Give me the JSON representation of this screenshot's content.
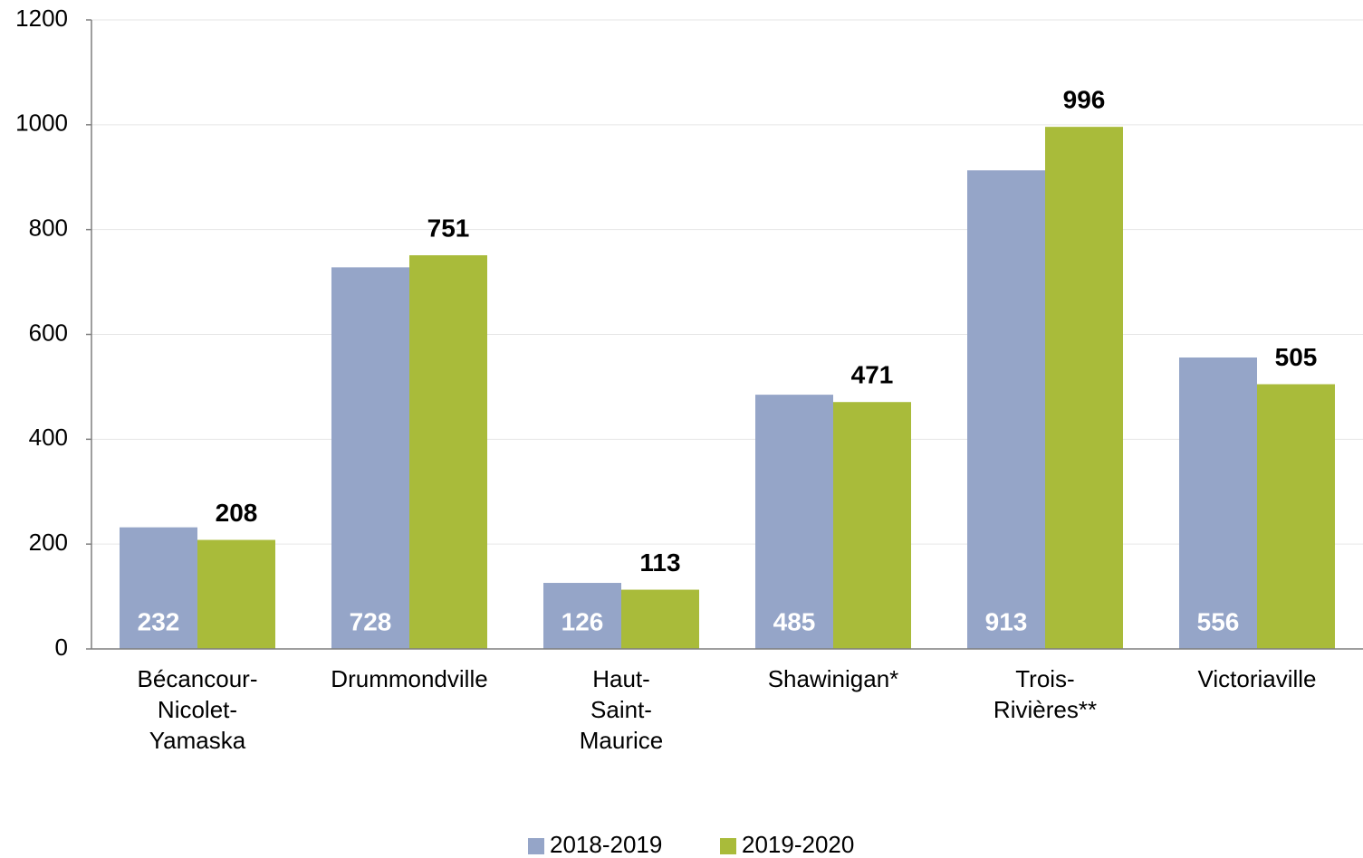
{
  "chart_data": {
    "type": "bar",
    "categories": [
      "Bécancour-Nicolet-Yamaska",
      "Drummondville",
      "Haut-Saint-Maurice",
      "Shawinigan*",
      "Trois-Rivières**",
      "Victoriaville"
    ],
    "series": [
      {
        "name": "2018-2019",
        "color": "#95a5c8",
        "values": [
          232,
          728,
          126,
          485,
          913,
          556
        ]
      },
      {
        "name": "2019-2020",
        "color": "#a9bb3a",
        "values": [
          208,
          751,
          113,
          471,
          996,
          505
        ]
      }
    ],
    "ylim": [
      0,
      1200
    ],
    "yticks": [
      0,
      200,
      400,
      600,
      800,
      1000,
      1200
    ],
    "grid": true,
    "legend": "bottom"
  }
}
